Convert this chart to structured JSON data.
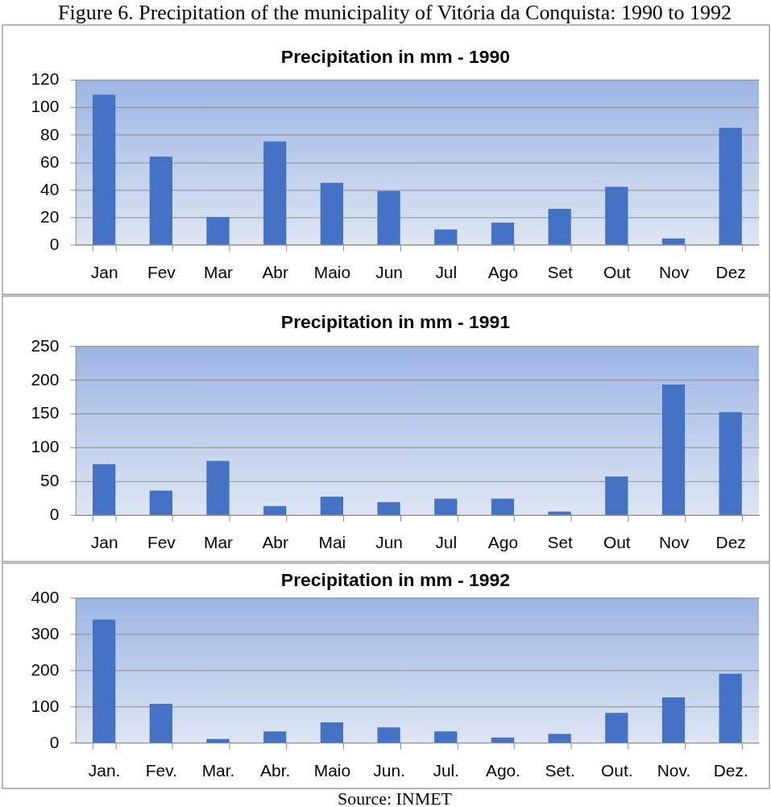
{
  "chart_data": [
    {
      "type": "bar",
      "title": "Precipitation in mm - 1990",
      "annotations": [
        "Figure 6. Precipitation of the municipality of Vitória da Conquista: 1990 to 1992"
      ],
      "categories": [
        "Jan",
        "Fev",
        "Mar",
        "Abr",
        "Maio",
        "Jun",
        "Jul",
        "Ago",
        "Set",
        "Out",
        "Nov",
        "Dez"
      ],
      "values": [
        109,
        64,
        20,
        75,
        45,
        39,
        11,
        16,
        26,
        42,
        4.5,
        85
      ],
      "color": "#4472c4",
      "ylim": [
        0,
        120
      ],
      "yticks": [
        0,
        20,
        40,
        60,
        80,
        100,
        120
      ],
      "grid": "y"
    },
    {
      "type": "bar",
      "title": "Precipitation in mm - 1991",
      "categories": [
        "Jan",
        "Fev",
        "Mar",
        "Abr",
        "Mai",
        "Jun",
        "Jul",
        "Ago",
        "Set",
        "Out",
        "Nov",
        "Dez"
      ],
      "values": [
        75,
        36,
        80,
        13,
        27,
        19,
        24,
        24,
        5,
        57,
        193,
        152
      ],
      "color": "#4472c4",
      "ylim": [
        0,
        250
      ],
      "yticks": [
        0,
        50,
        100,
        150,
        200,
        250
      ],
      "grid": "y"
    },
    {
      "type": "bar",
      "title": "Precipitation in mm - 1992",
      "annotations": [
        "Source: INMET"
      ],
      "categories": [
        "Jan.",
        "Fev.",
        "Mar.",
        "Abr.",
        "Maio",
        "Jun.",
        "Jul.",
        "Ago.",
        "Set.",
        "Out.",
        "Nov.",
        "Dez."
      ],
      "values": [
        340,
        107,
        10,
        31,
        56,
        42,
        31,
        14,
        24,
        82,
        125,
        190
      ],
      "color": "#4472c4",
      "ylim": [
        0,
        400
      ],
      "yticks": [
        0,
        100,
        200,
        300,
        400
      ],
      "grid": "y"
    }
  ]
}
